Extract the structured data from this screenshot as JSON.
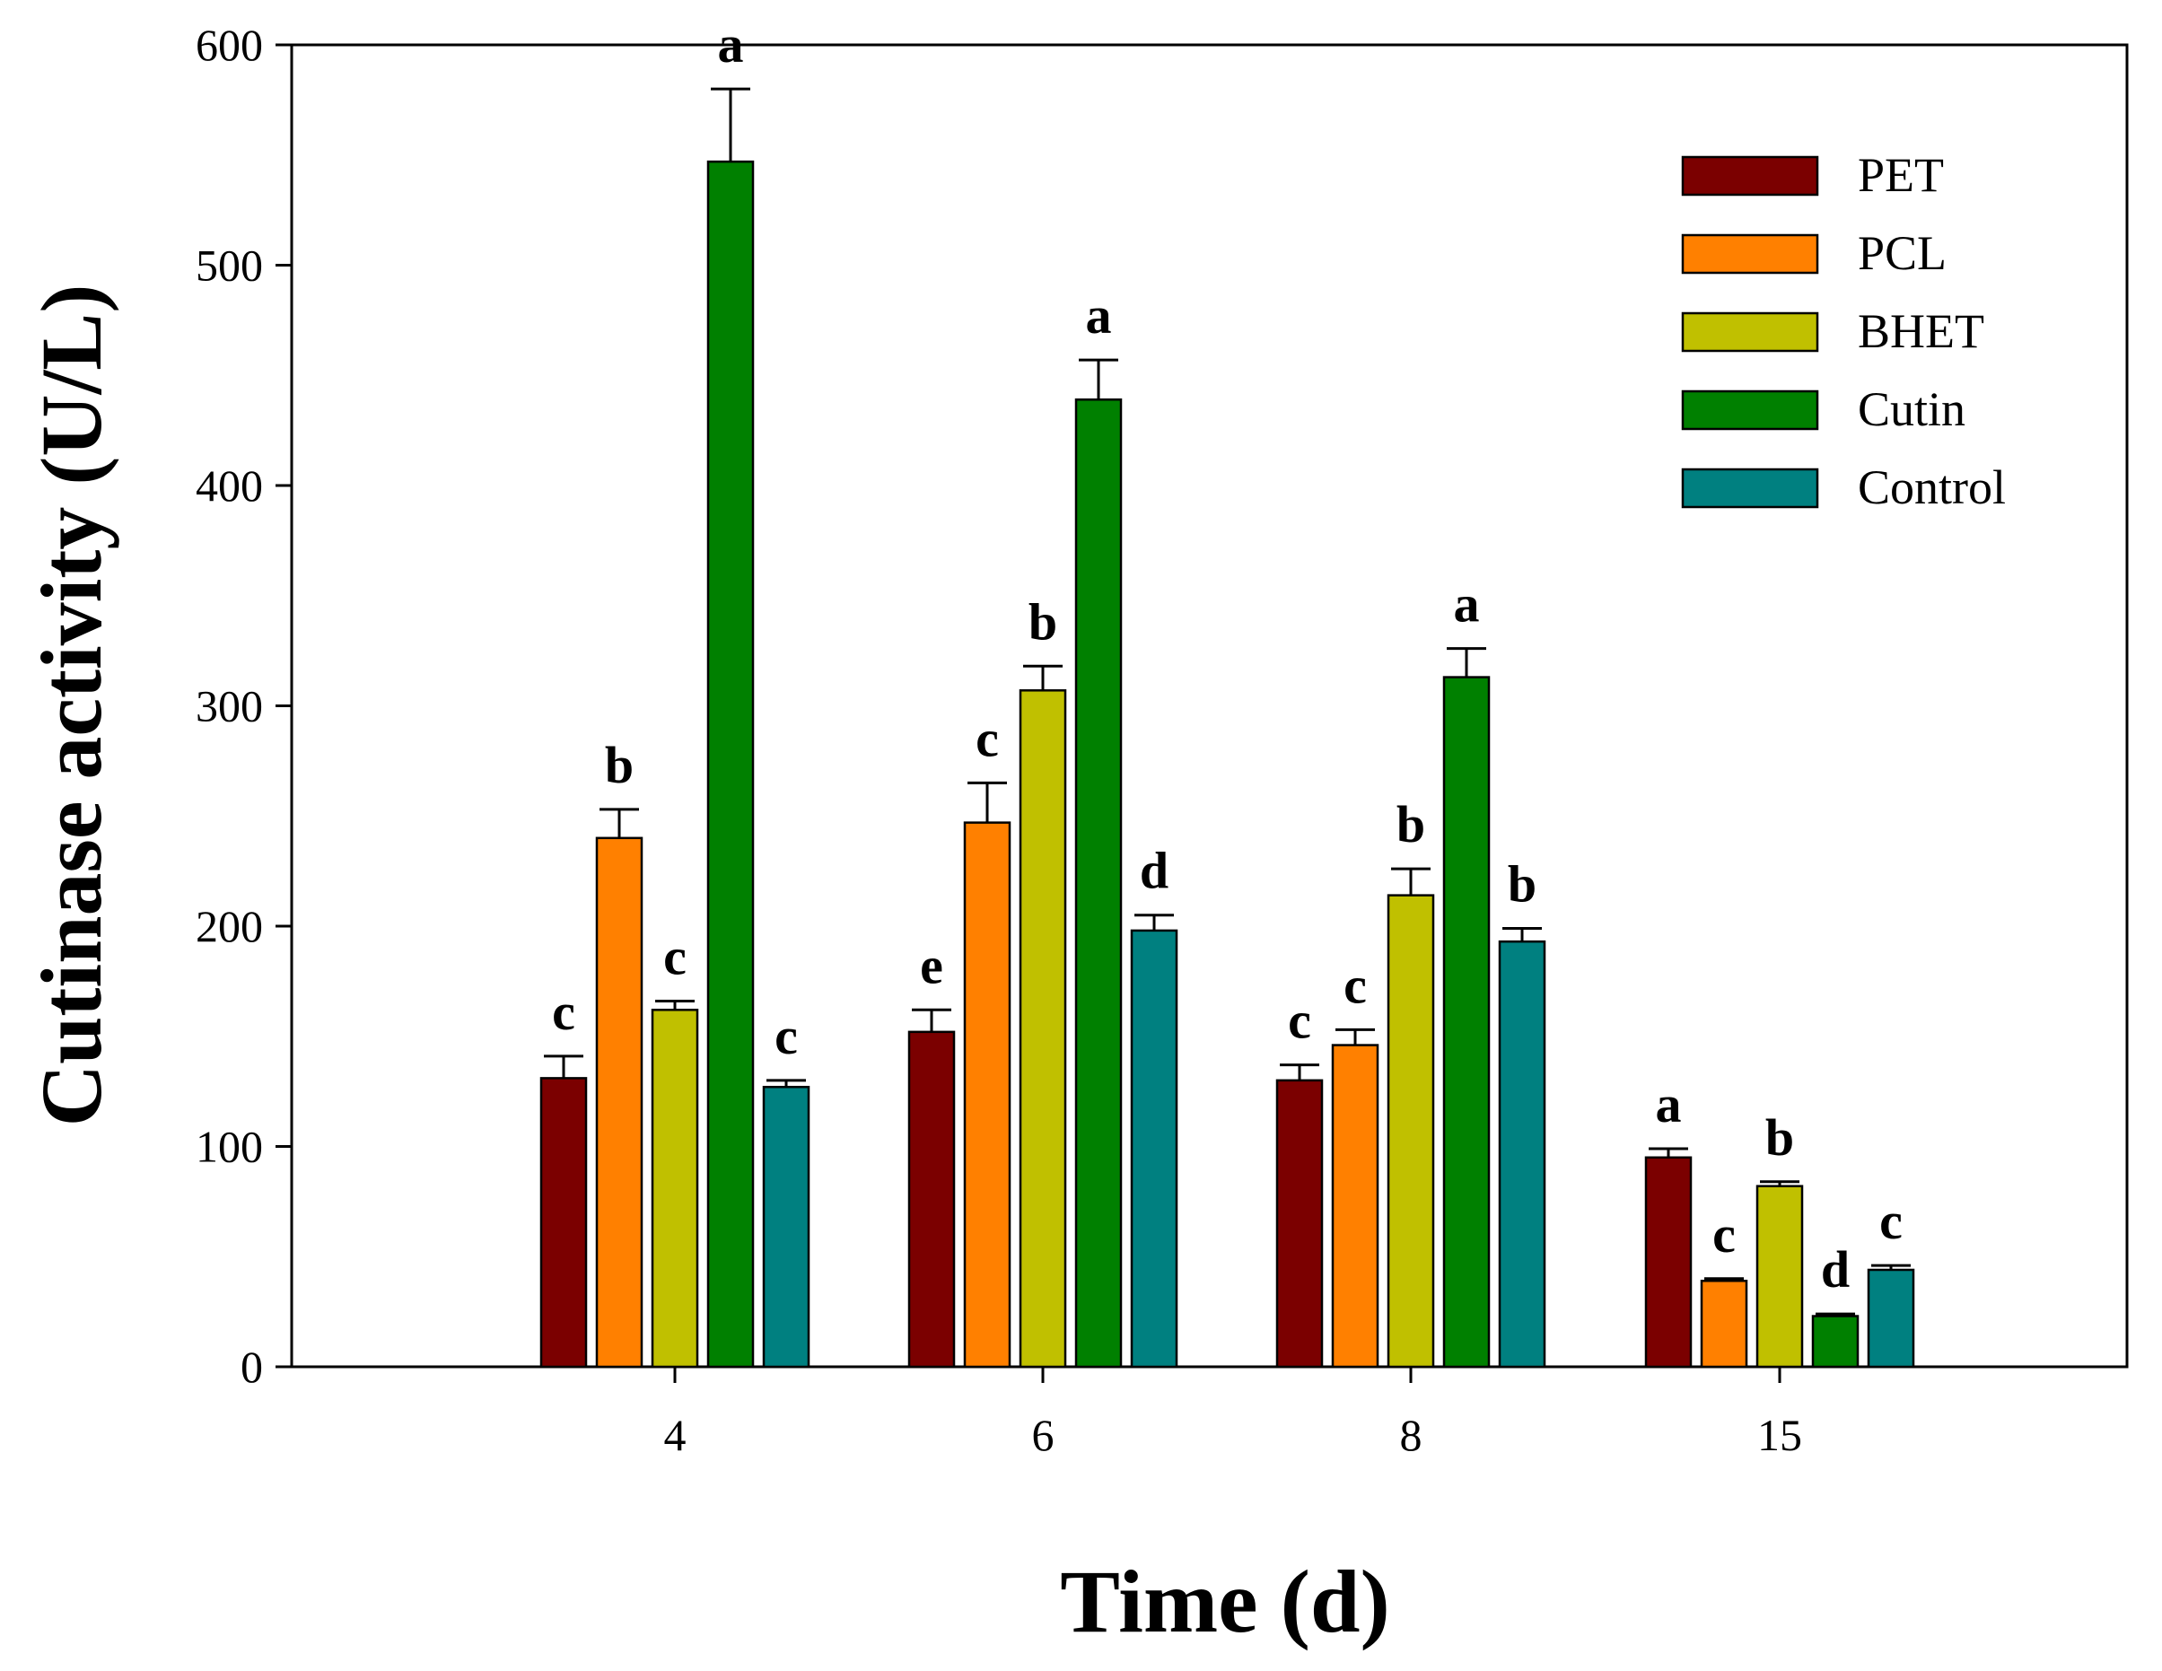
{
  "chart_data": {
    "type": "bar",
    "title": "",
    "xlabel": "Time (d)",
    "ylabel": "Cutinase activity (U/L)",
    "ylim": [
      0,
      600
    ],
    "yticks": [
      0,
      100,
      200,
      300,
      400,
      500,
      600
    ],
    "categories": [
      "4",
      "6",
      "8",
      "15"
    ],
    "legend_position": "top-right",
    "series": [
      {
        "name": "PET",
        "color": "#7b0000",
        "values": [
          131,
          152,
          130,
          95
        ],
        "errors": [
          10,
          10,
          7,
          4
        ],
        "labels": [
          "c",
          "e",
          "c",
          "a"
        ]
      },
      {
        "name": "PCL",
        "color": "#ff8000",
        "values": [
          240,
          247,
          146,
          39
        ],
        "errors": [
          13,
          18,
          7,
          1
        ],
        "labels": [
          "b",
          "c",
          "c",
          "c"
        ]
      },
      {
        "name": "BHET",
        "color": "#c0c000",
        "values": [
          162,
          307,
          214,
          82
        ],
        "errors": [
          4,
          11,
          12,
          2
        ],
        "labels": [
          "c",
          "b",
          "b",
          "b"
        ]
      },
      {
        "name": "Cutin",
        "color": "#008000",
        "values": [
          547,
          439,
          313,
          23
        ],
        "errors": [
          33,
          18,
          13,
          1
        ],
        "labels": [
          "a",
          "a",
          "a",
          "d"
        ]
      },
      {
        "name": "Control",
        "color": "#008080",
        "values": [
          127,
          198,
          193,
          44
        ],
        "errors": [
          3,
          7,
          6,
          2
        ],
        "labels": [
          "c",
          "d",
          "b",
          "c"
        ]
      }
    ]
  }
}
